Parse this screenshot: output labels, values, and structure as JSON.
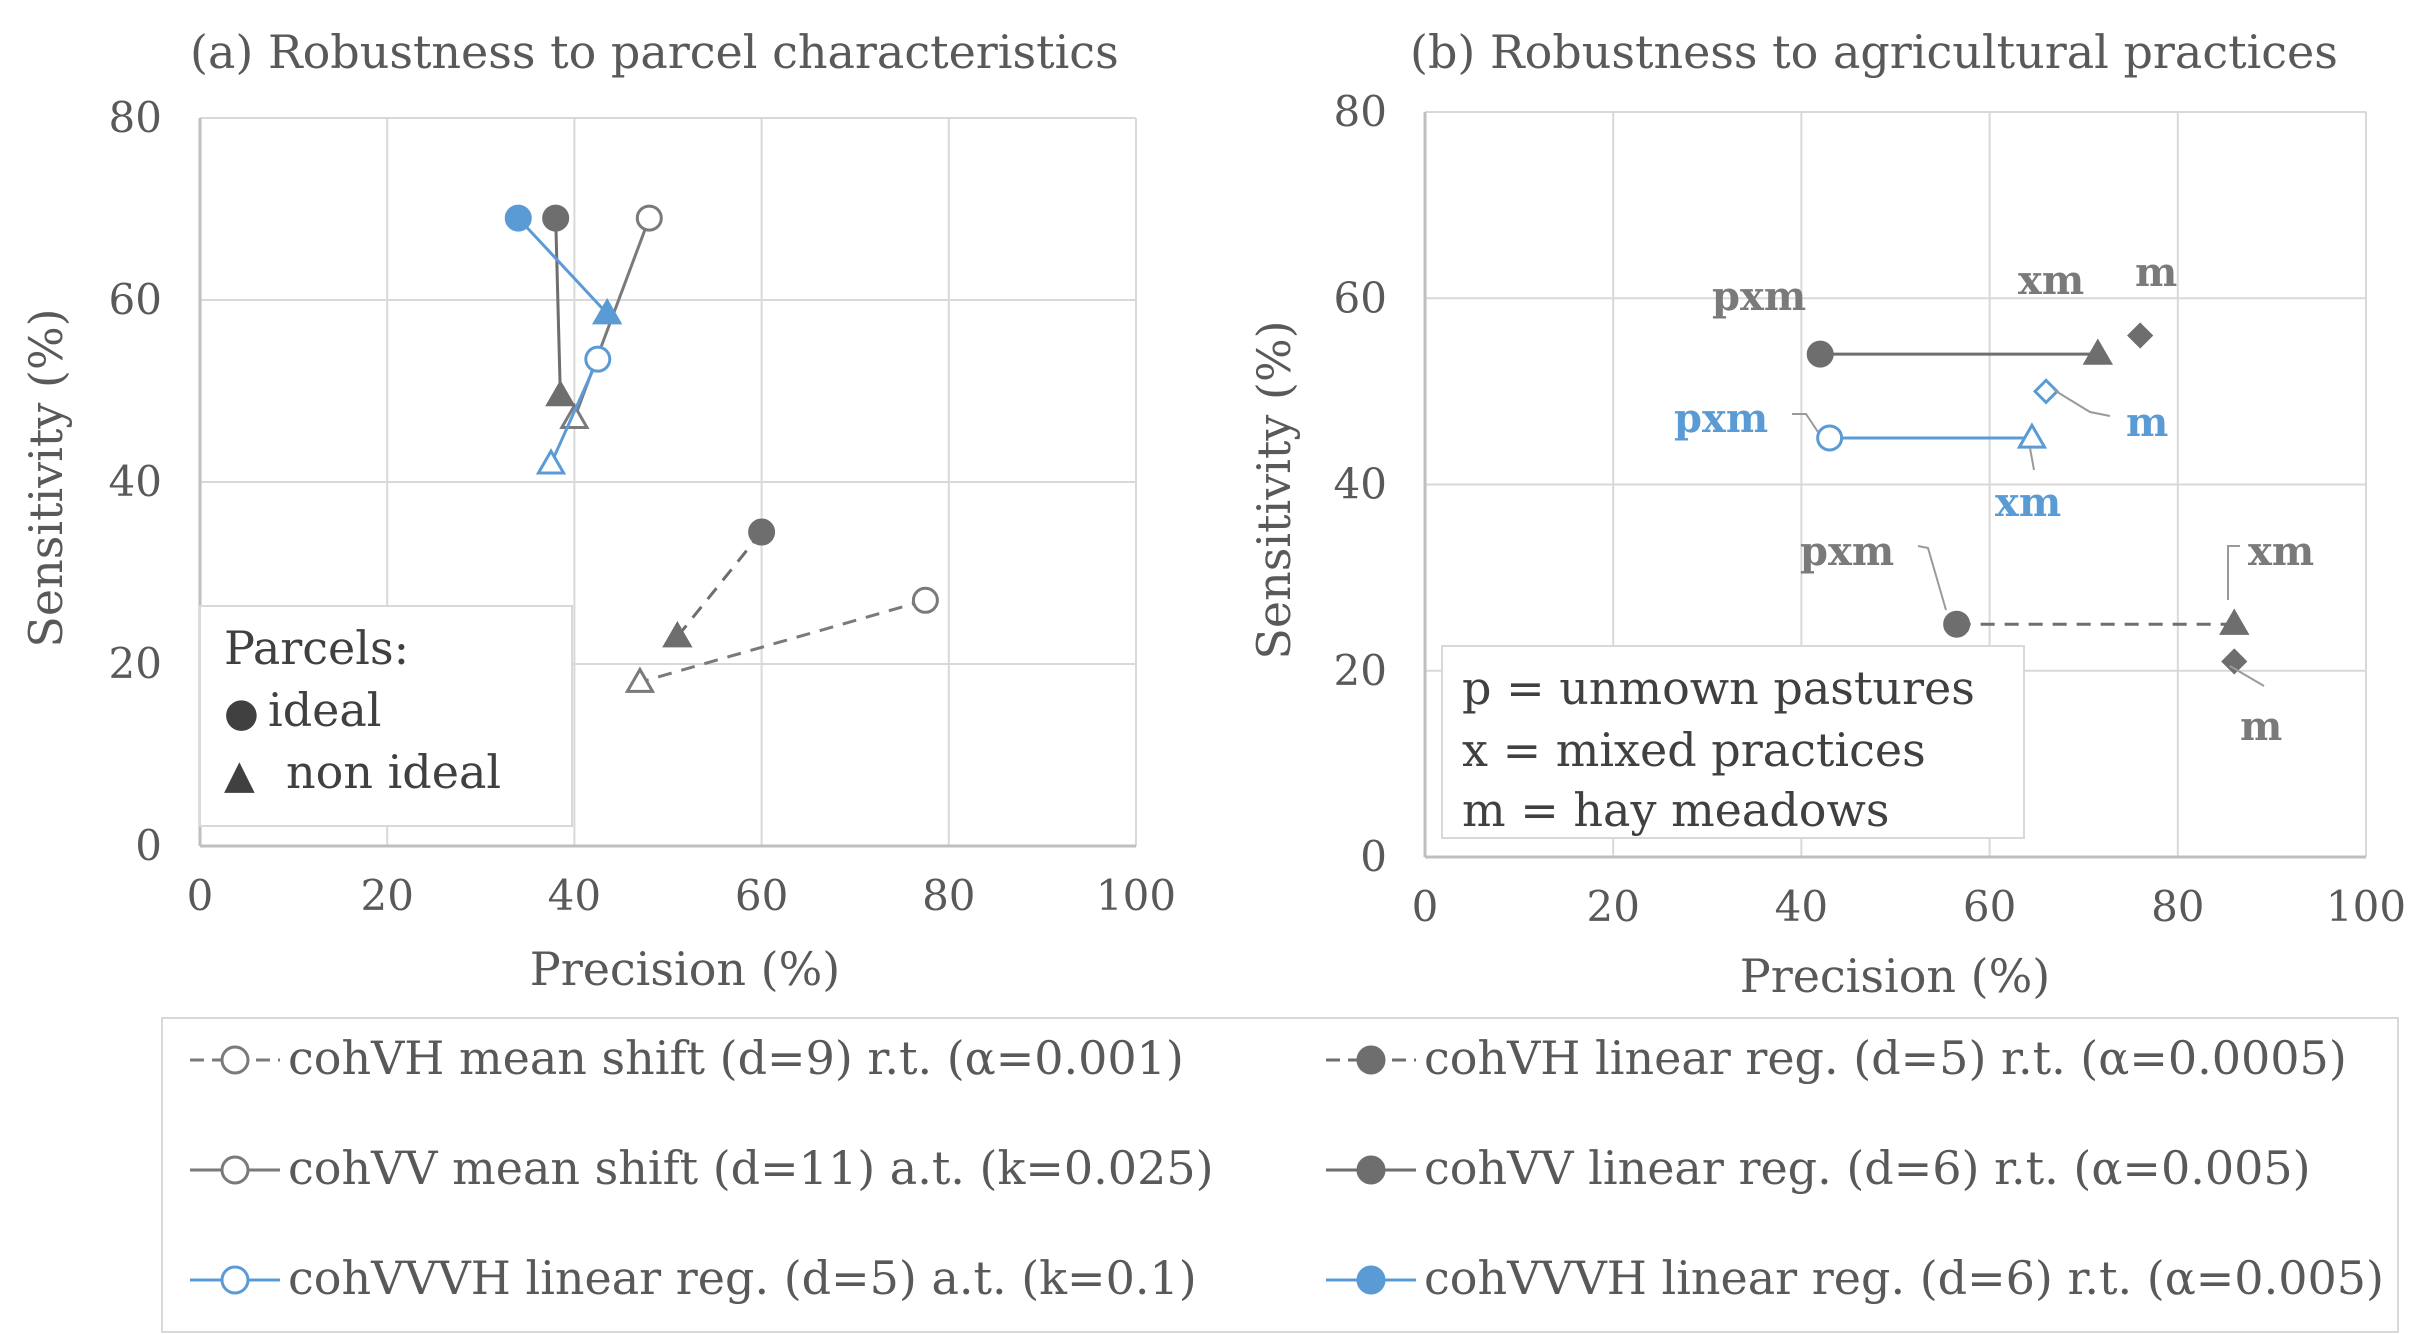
{
  "colors": {
    "gray": "#7a7a7a",
    "dark_gray": "#6e6e6e",
    "blue": "#5b9bd5",
    "grid": "#d9d9d9",
    "axis": "#bfbfbf",
    "text": "#595959",
    "legend_border": "#d9d9d9"
  },
  "chart_data": [
    {
      "type": "scatter",
      "title": "(a) Robustness to parcel characteristics",
      "xlabel": "Precision (%)",
      "ylabel": "Sensitivity (%)",
      "xlim": [
        0,
        100
      ],
      "ylim": [
        0,
        80
      ],
      "xticks": [
        "0",
        "20",
        "40",
        "60",
        "80",
        "100"
      ],
      "yticks": [
        "0",
        "20",
        "40",
        "60",
        "80"
      ],
      "grid": true,
      "series": [
        {
          "name": "cohVH mean shift (d=9) r.t. (α=0.001)",
          "points": [
            [
              77.5,
              27
            ],
            [
              47,
              18
            ]
          ]
        },
        {
          "name": "cohVV mean shift (d=11) a.t. (k=0.025)",
          "points": [
            [
              48,
              69
            ],
            [
              40,
              47
            ]
          ]
        },
        {
          "name": "cohVVVH linear reg. (d=5) a.t. (k=0.1)",
          "points": [
            [
              42.5,
              53.5
            ],
            [
              37.5,
              42
            ]
          ]
        },
        {
          "name": "cohVH linear reg. (d=5) r.t. (α=0.0005)",
          "points": [
            [
              60,
              34.5
            ],
            [
              51,
              23
            ]
          ]
        },
        {
          "name": "cohVV linear reg. (d=6) r.t. (α=0.005)",
          "points": [
            [
              38,
              69
            ],
            [
              38.5,
              49.5
            ]
          ]
        },
        {
          "name": "cohVVVH linear reg. (d=6) r.t. (α=0.005)",
          "points": [
            [
              34,
              69
            ],
            [
              43.5,
              58.5
            ]
          ]
        }
      ],
      "legend": {
        "title": "Parcels:",
        "entries": [
          {
            "symbol": "●",
            "label": "ideal"
          },
          {
            "symbol": "▲",
            "label": "non ideal"
          }
        ]
      }
    },
    {
      "type": "scatter",
      "title": "(b) Robustness to agricultural practices",
      "xlabel": "Precision (%)",
      "ylabel": "Sensitivity (%)",
      "xlim": [
        0,
        100
      ],
      "ylim": [
        0,
        80
      ],
      "xticks": [
        "0",
        "20",
        "40",
        "60",
        "80",
        "100"
      ],
      "yticks": [
        "0",
        "20",
        "40",
        "60",
        "80"
      ],
      "grid": true,
      "series": [
        {
          "name": "cohVV linear reg. (d=6) r.t. (α=0.005)",
          "points": [
            {
              "label": "pxm",
              "x": 42,
              "y": 54
            },
            {
              "label": "xm",
              "x": 71.5,
              "y": 54
            },
            {
              "label": "m",
              "x": 76,
              "y": 56
            }
          ]
        },
        {
          "name": "cohVVVH linear reg. (d=5) a.t. (k=0.1)",
          "points": [
            {
              "label": "pxm",
              "x": 43,
              "y": 45
            },
            {
              "label": "xm",
              "x": 64.5,
              "y": 45
            },
            {
              "label": "m",
              "x": 66,
              "y": 50
            }
          ]
        },
        {
          "name": "cohVH linear reg. (d=5) r.t. (α=0.0005)",
          "points": [
            {
              "label": "pxm",
              "x": 56.5,
              "y": 25
            },
            {
              "label": "xm",
              "x": 86,
              "y": 25
            },
            {
              "label": "m",
              "x": 86,
              "y": 21
            }
          ]
        }
      ],
      "annotations": [
        "pxm",
        "xm",
        "m",
        "pxm",
        "m",
        "xm",
        "pxm",
        "xm",
        "m"
      ],
      "legend": {
        "entries": [
          "p = unmown pastures",
          "x = mixed practices",
          "m = hay meadows"
        ]
      }
    }
  ],
  "legend": {
    "entries": [
      "cohVH mean shift (d=9) r.t. (α=0.001)",
      "cohVH linear reg. (d=5) r.t. (α=0.0005)",
      "cohVV mean shift (d=11) a.t. (k=0.025)",
      "cohVV linear reg. (d=6) r.t. (α=0.005)",
      "cohVVVH linear reg. (d=5) a.t. (k=0.1)",
      "cohVVVH linear reg. (d=6) r.t. (α=0.005)"
    ]
  }
}
